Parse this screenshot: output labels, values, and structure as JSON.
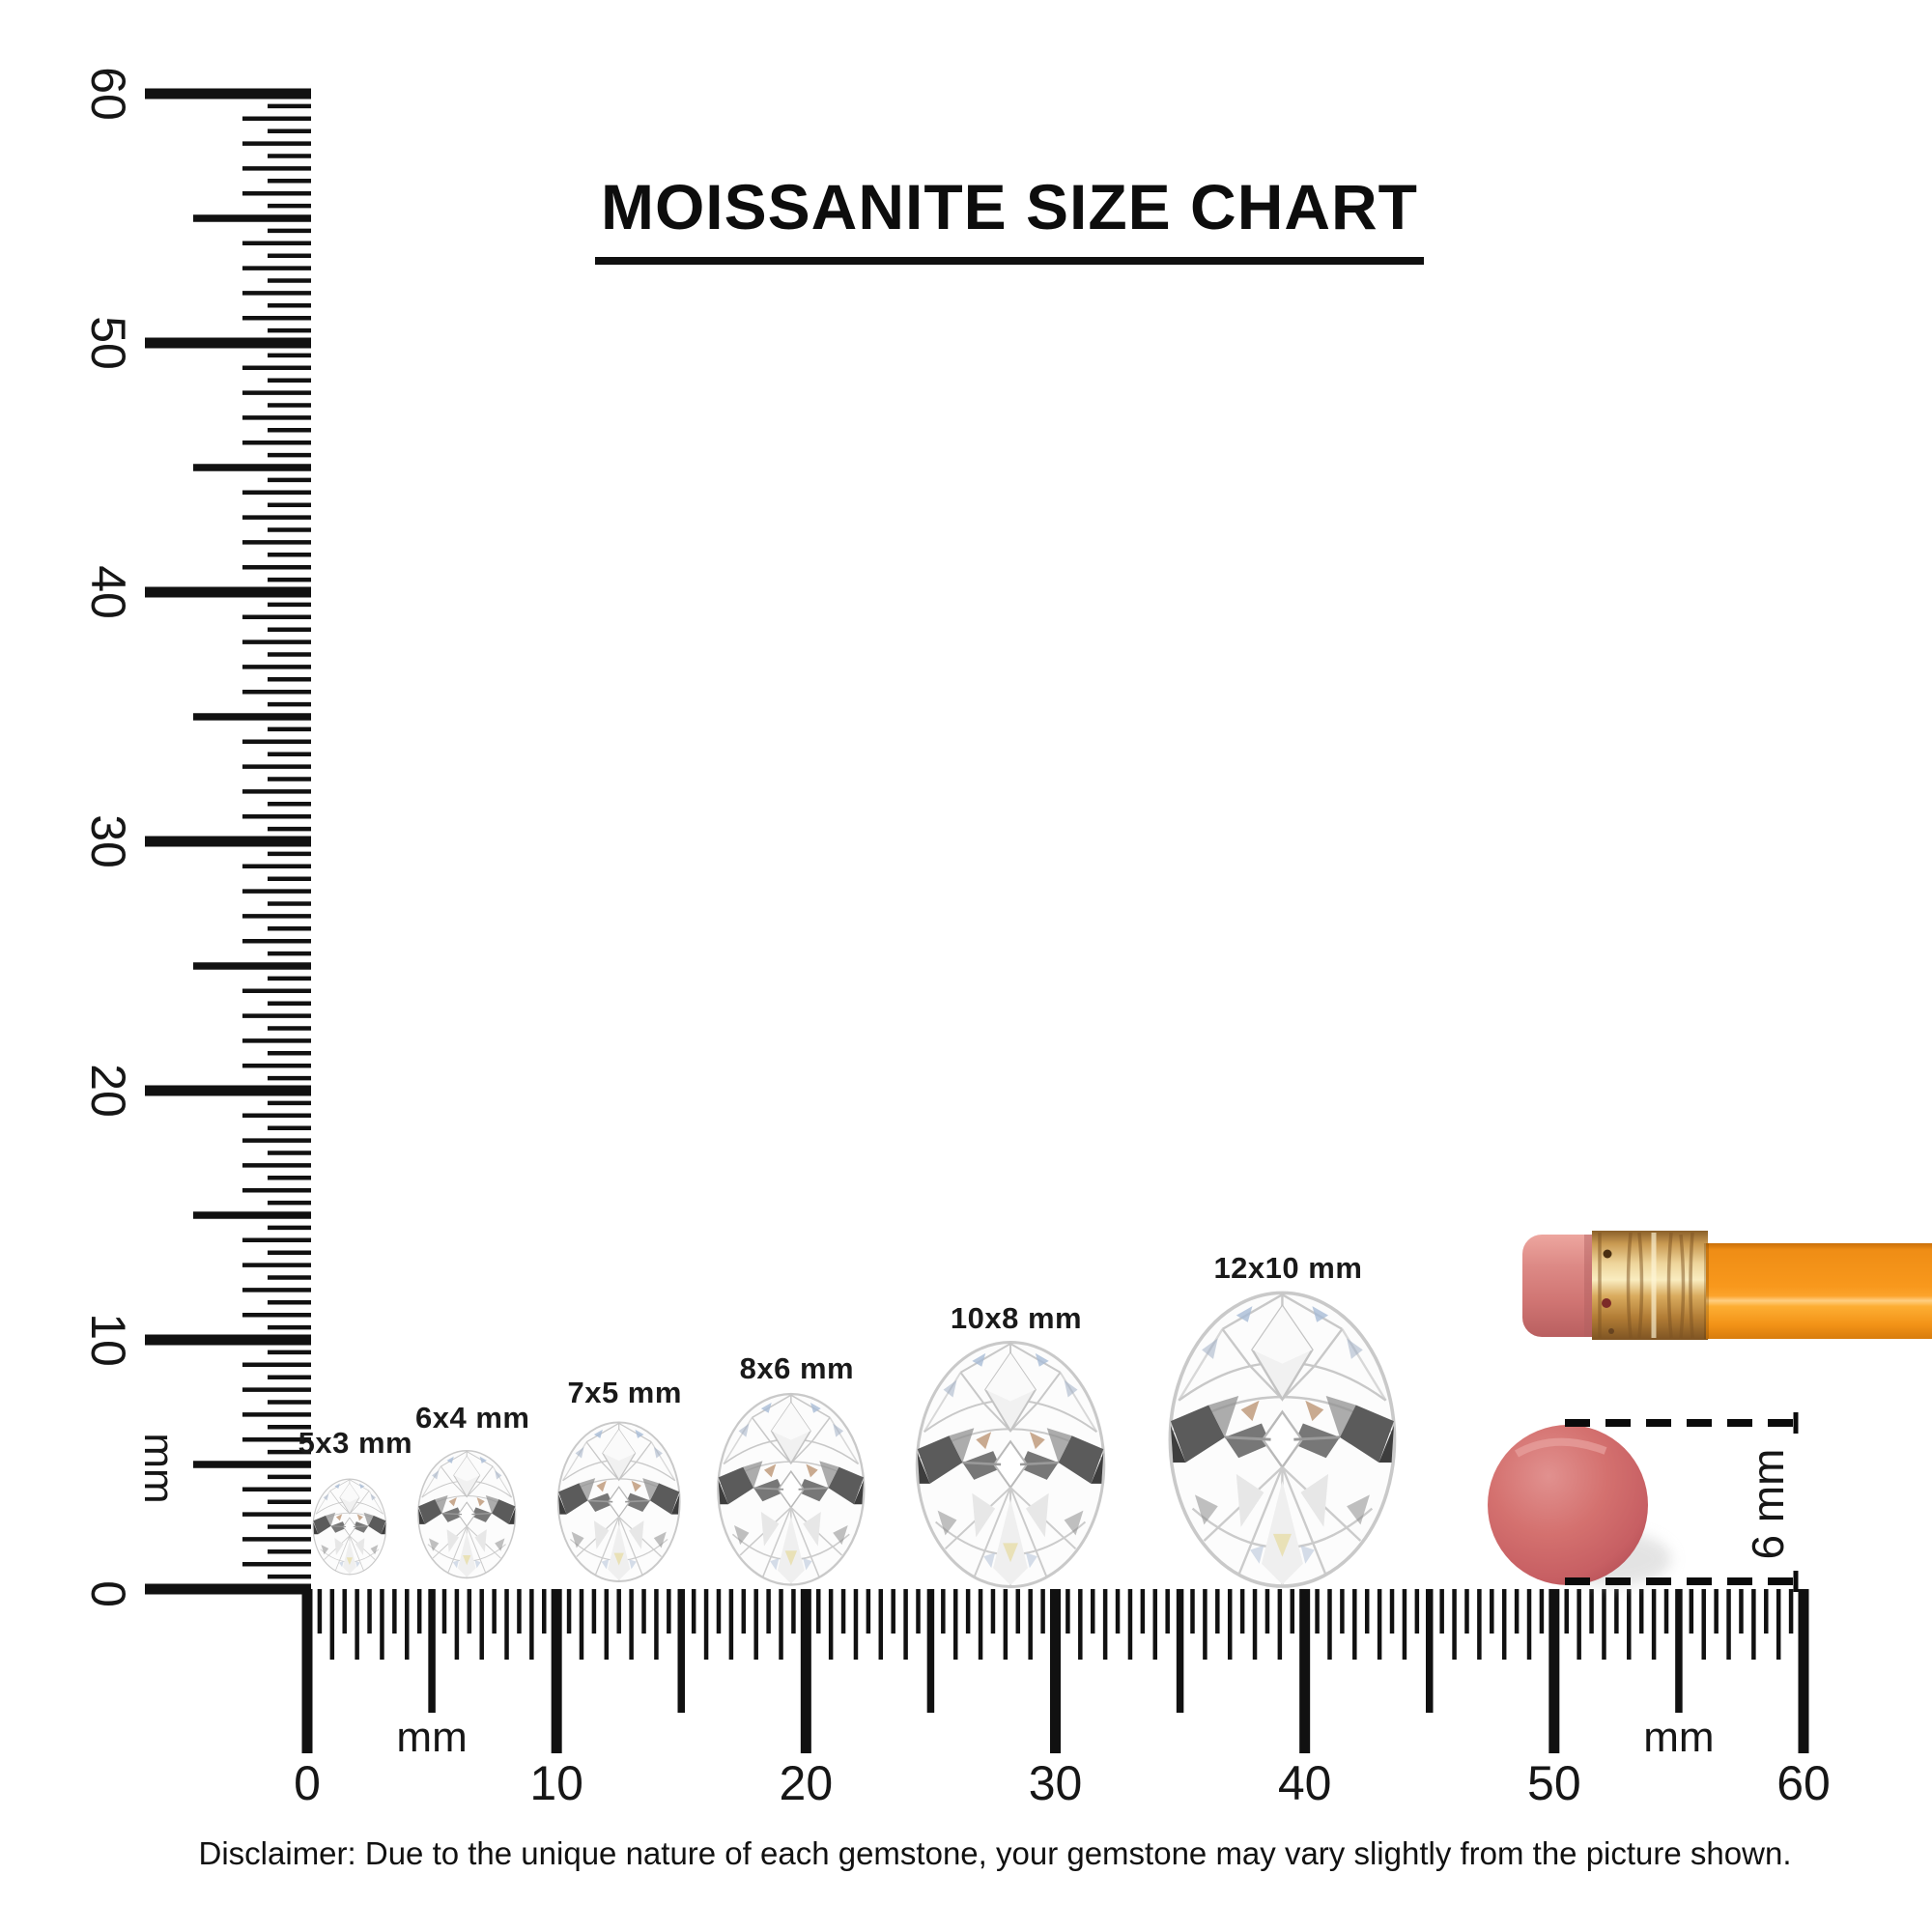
{
  "title": "MOISSANITE SIZE CHART",
  "disclaimer": "Disclaimer: Due to the unique nature of each gemstone, your gemstone may vary slightly from the picture shown.",
  "vertical_ruler": {
    "unit": "mm",
    "labels": [
      "0",
      "10",
      "20",
      "30",
      "40",
      "50",
      "60"
    ],
    "min_mm": 0,
    "max_mm": 60,
    "tick_step_mm": 0.5
  },
  "horizontal_ruler": {
    "unit_left": "mm",
    "unit_right": "mm",
    "labels": [
      "0",
      "10",
      "20",
      "30",
      "40",
      "50",
      "60"
    ],
    "min_mm": 0,
    "max_mm": 60,
    "tick_step_mm": 0.5
  },
  "gems": [
    {
      "label": "5x3 mm",
      "width_mm": 3,
      "height_mm": 5
    },
    {
      "label": "6x4 mm",
      "width_mm": 4,
      "height_mm": 6
    },
    {
      "label": "7x5 mm",
      "width_mm": 5,
      "height_mm": 7
    },
    {
      "label": "8x6 mm",
      "width_mm": 6,
      "height_mm": 8
    },
    {
      "label": "10x8 mm",
      "width_mm": 8,
      "height_mm": 10
    },
    {
      "label": "12x10 mm",
      "width_mm": 10,
      "height_mm": 12
    }
  ],
  "eraser_measure": {
    "label": "6 mm",
    "diameter_mm": 6
  },
  "colors": {
    "ink": "#111111",
    "pencil_body": "#f8991d",
    "pencil_ferrule": "#d9ab5e",
    "pencil_eraser_tip": "#d5807e",
    "round_eraser": "#cf676b"
  }
}
